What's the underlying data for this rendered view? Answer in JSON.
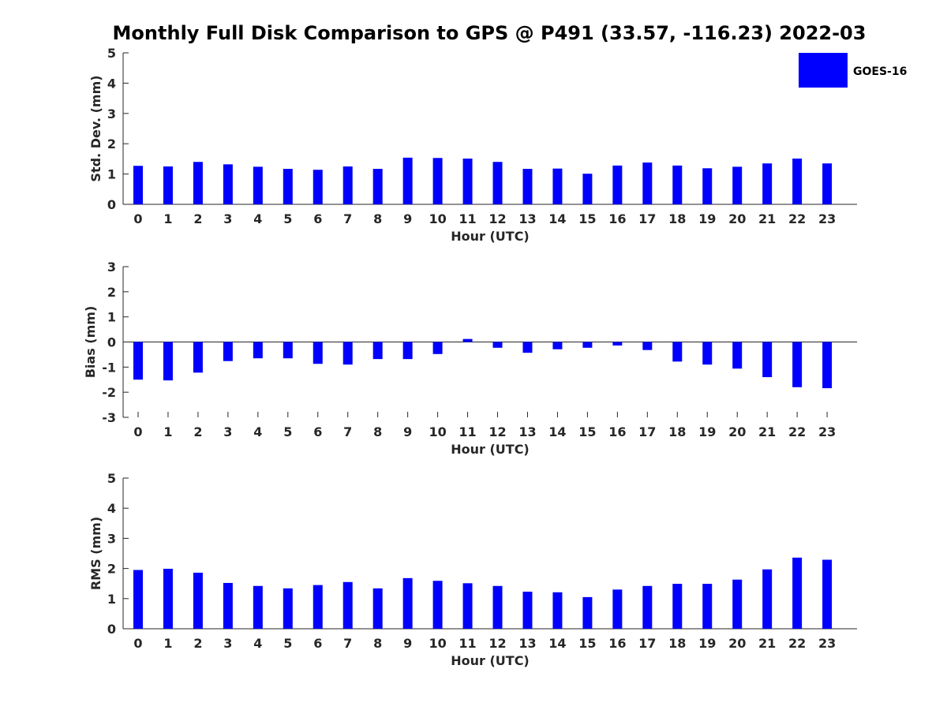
{
  "title": "Monthly Full Disk Comparison to GPS @ P491 (33.57, -116.23) 2022-03",
  "legend": {
    "label": "GOES-16",
    "color": "#0000ff",
    "placement": "top-right"
  },
  "chart_data": [
    {
      "type": "bar",
      "xlabel": "Hour (UTC)",
      "ylabel": "Std. Dev. (mm)",
      "ylim": [
        0,
        5
      ],
      "yticks": [
        0,
        1,
        2,
        3,
        4,
        5
      ],
      "categories": [
        "0",
        "1",
        "2",
        "3",
        "4",
        "5",
        "6",
        "7",
        "8",
        "9",
        "10",
        "11",
        "12",
        "13",
        "14",
        "15",
        "16",
        "17",
        "18",
        "19",
        "20",
        "21",
        "22",
        "23"
      ],
      "series": [
        {
          "name": "GOES-16",
          "color": "#0000ff",
          "values": [
            1.27,
            1.25,
            1.4,
            1.32,
            1.24,
            1.17,
            1.14,
            1.25,
            1.17,
            1.54,
            1.53,
            1.51,
            1.4,
            1.17,
            1.18,
            1.01,
            1.28,
            1.38,
            1.28,
            1.19,
            1.24,
            1.35,
            1.51,
            1.35
          ]
        }
      ]
    },
    {
      "type": "bar",
      "xlabel": "Hour (UTC)",
      "ylabel": "Bias (mm)",
      "ylim": [
        -3,
        3
      ],
      "yticks": [
        -3,
        -2,
        -1,
        0,
        1,
        2,
        3
      ],
      "categories": [
        "0",
        "1",
        "2",
        "3",
        "4",
        "5",
        "6",
        "7",
        "8",
        "9",
        "10",
        "11",
        "12",
        "13",
        "14",
        "15",
        "16",
        "17",
        "18",
        "19",
        "20",
        "21",
        "22",
        "23"
      ],
      "series": [
        {
          "name": "GOES-16",
          "color": "#0000ff",
          "values": [
            -1.5,
            -1.53,
            -1.22,
            -0.76,
            -0.65,
            -0.65,
            -0.87,
            -0.9,
            -0.68,
            -0.68,
            -0.48,
            0.12,
            -0.23,
            -0.43,
            -0.29,
            -0.23,
            -0.14,
            -0.32,
            -0.78,
            -0.9,
            -1.06,
            -1.4,
            -1.8,
            -1.84
          ]
        }
      ]
    },
    {
      "type": "bar",
      "xlabel": "Hour (UTC)",
      "ylabel": "RMS (mm)",
      "ylim": [
        0,
        5
      ],
      "yticks": [
        0,
        1,
        2,
        3,
        4,
        5
      ],
      "categories": [
        "0",
        "1",
        "2",
        "3",
        "4",
        "5",
        "6",
        "7",
        "8",
        "9",
        "10",
        "11",
        "12",
        "13",
        "14",
        "15",
        "16",
        "17",
        "18",
        "19",
        "20",
        "21",
        "22",
        "23"
      ],
      "series": [
        {
          "name": "GOES-16",
          "color": "#0000ff",
          "values": [
            1.95,
            1.99,
            1.86,
            1.52,
            1.42,
            1.34,
            1.45,
            1.55,
            1.34,
            1.68,
            1.59,
            1.51,
            1.42,
            1.23,
            1.21,
            1.05,
            1.3,
            1.42,
            1.49,
            1.49,
            1.63,
            1.97,
            2.36,
            2.29
          ]
        }
      ]
    }
  ]
}
